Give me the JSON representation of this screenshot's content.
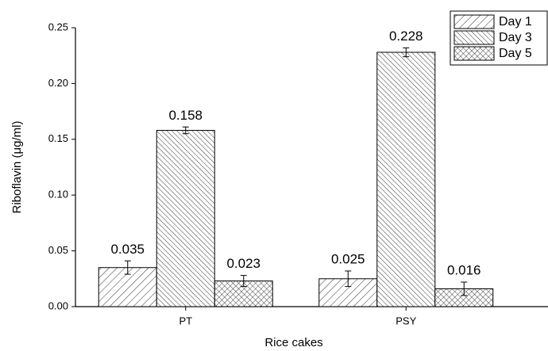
{
  "chart_data": {
    "type": "bar",
    "x_label": "Rice cakes",
    "y_label": "Riboflavin (μg/ml)",
    "categories": [
      "PT",
      "PSY"
    ],
    "series": [
      {
        "name": "Day 1",
        "color": "#000000",
        "hatch": "forward",
        "values": [
          0.035,
          0.025
        ],
        "errors": [
          0.006,
          0.007
        ]
      },
      {
        "name": "Day 3",
        "color": "#000000",
        "hatch": "backward",
        "values": [
          0.158,
          0.228
        ],
        "errors": [
          0.003,
          0.004
        ]
      },
      {
        "name": "Day 5",
        "color": "#000000",
        "hatch": "cross",
        "values": [
          0.023,
          0.016
        ],
        "errors": [
          0.005,
          0.006
        ]
      }
    ],
    "ylim": [
      0,
      0.25
    ],
    "yticks": [
      {
        "value": 0,
        "label": "0.00"
      },
      {
        "value": 0.05,
        "label": "0.05"
      },
      {
        "value": 0.1,
        "label": "0.10"
      },
      {
        "value": 0.15,
        "label": "0.15"
      },
      {
        "value": 0.2,
        "label": "0.20"
      },
      {
        "value": 0.25,
        "label": "0.25"
      }
    ],
    "legend": "top-right"
  }
}
